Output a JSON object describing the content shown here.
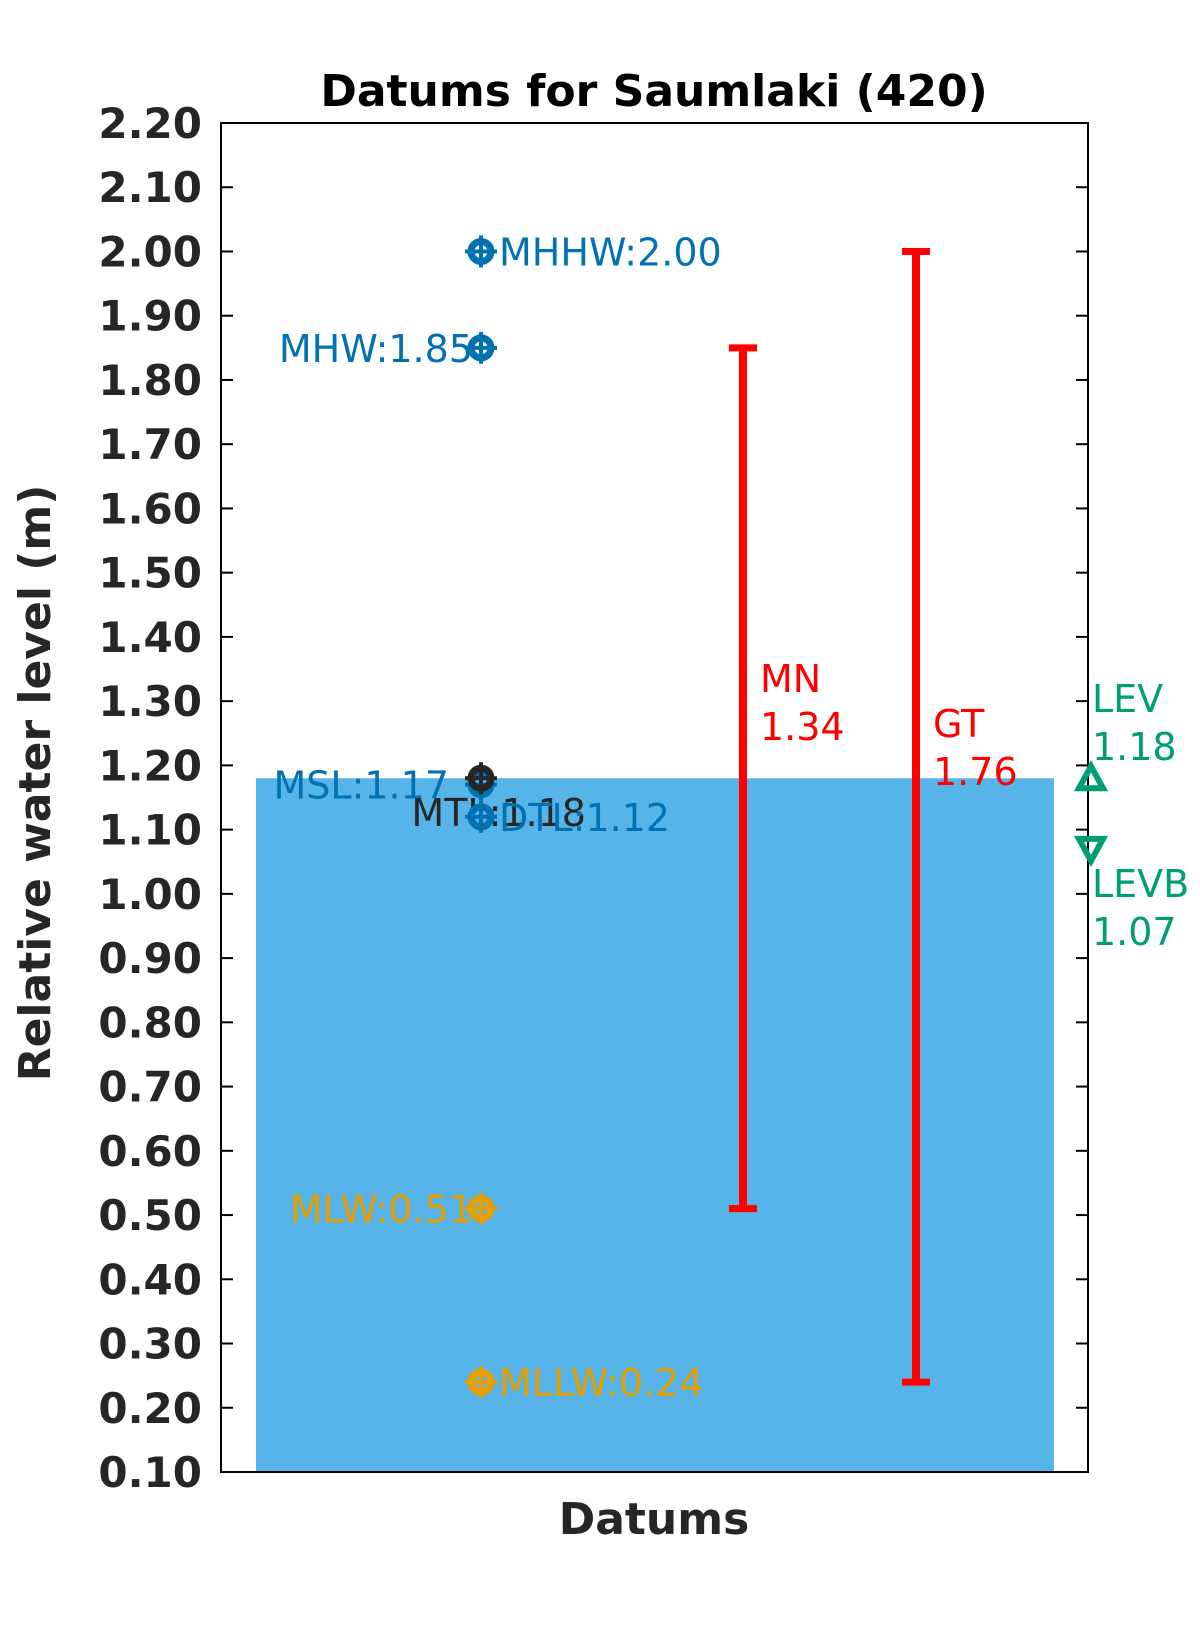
{
  "chart_data": {
    "type": "bar",
    "title": "Datums for Saumlaki (420)",
    "xlabel": "Datums",
    "ylabel": "Relative water level (m)",
    "ylim": [
      0.1,
      2.2
    ],
    "yticks": [
      "0.10",
      "0.20",
      "0.30",
      "0.40",
      "0.50",
      "0.60",
      "0.70",
      "0.80",
      "0.90",
      "1.00",
      "1.10",
      "1.20",
      "1.30",
      "1.40",
      "1.50",
      "1.60",
      "1.70",
      "1.80",
      "1.90",
      "2.00",
      "2.10",
      "2.20"
    ],
    "grid": false,
    "fill_level": 1.18,
    "fill_color": "#56b4e9",
    "datums": [
      {
        "label": "MHHW:2.00",
        "value": 2.0,
        "color": "#0072b2"
      },
      {
        "label": "MHW:1.85",
        "value": 1.85,
        "color": "#0072b2"
      },
      {
        "label": "MSL:1.17",
        "value": 1.17,
        "color": "#0072b2"
      },
      {
        "label": "MTL:1.18",
        "value": 1.18,
        "color": "#262626"
      },
      {
        "label": "DTL:1.12",
        "value": 1.12,
        "color": "#0072b2"
      },
      {
        "label": "MLW:0.51",
        "value": 0.51,
        "color": "#e69f00"
      },
      {
        "label": "MLLW:0.24",
        "value": 0.24,
        "color": "#e69f00"
      }
    ],
    "ranges": [
      {
        "name": "MN",
        "value_label": "1.34",
        "low": 0.51,
        "high": 1.85,
        "color": "#ff0000"
      },
      {
        "name": "GT",
        "value_label": "1.76",
        "low": 0.24,
        "high": 2.0,
        "color": "#ff0000"
      }
    ],
    "levels": [
      {
        "name": "LEV",
        "value_label": "1.18",
        "value": 1.18,
        "marker": "triangle-up",
        "color": "#009e73"
      },
      {
        "name": "LEVB",
        "value_label": "1.07",
        "value": 1.07,
        "marker": "triangle-down",
        "color": "#009e73"
      }
    ]
  }
}
